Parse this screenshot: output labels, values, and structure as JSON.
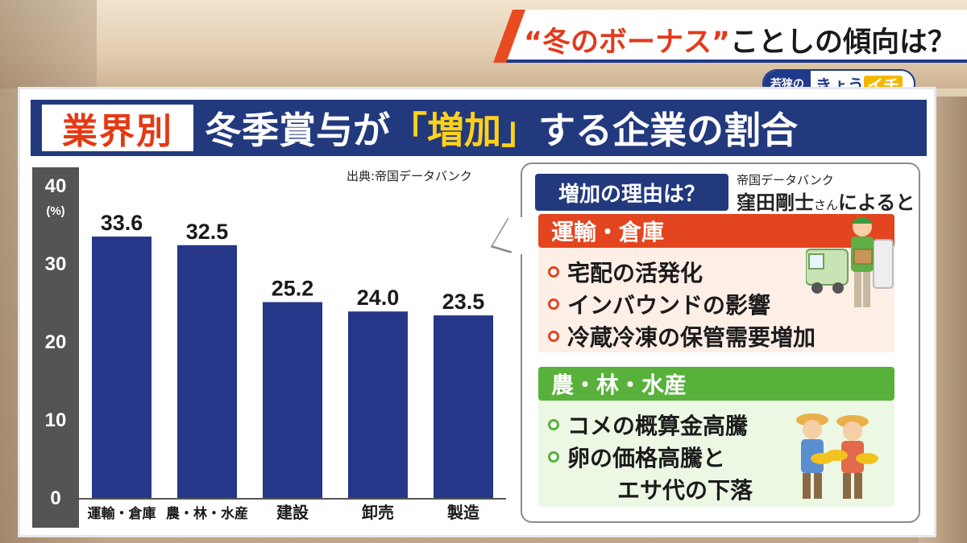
{
  "header": {
    "topic_quote_open": "“",
    "topic_quote_word": "冬のボーナス",
    "topic_quote_close": "”",
    "topic_rest": "ことしの傾向は？",
    "show_logo_prefix": "若狭の",
    "show_logo_name": "きょう",
    "show_logo_accent": "イチ"
  },
  "title": {
    "tag": "業界別",
    "main_pre": "冬季賞与が",
    "main_highlight": "「増加」",
    "main_post": "する企業の割合"
  },
  "source": "出典:帝国データバンク",
  "chart_data": {
    "type": "bar",
    "categories": [
      "運輸・倉庫",
      "農・林・水産",
      "建設",
      "卸売",
      "製造"
    ],
    "values": [
      33.6,
      32.5,
      25.2,
      24.0,
      23.5
    ],
    "value_labels": [
      "33.6",
      "32.5",
      "25.2",
      "24.0",
      "23.5"
    ],
    "ylim": [
      0,
      40
    ],
    "yticks": [
      "0",
      "10",
      "20",
      "30",
      "40"
    ],
    "ylabel": "(%)",
    "bar_color": "#26378a",
    "grid": false
  },
  "panel": {
    "question": "増加の理由は？",
    "attribution_org": "帝国データバンク",
    "attribution_name": "窪田剛士",
    "attribution_honorific": "さん",
    "attribution_tail": "によると",
    "sections": [
      {
        "heading": "運輸・倉庫",
        "color": "#e2451f",
        "body_color": "#fdeee6",
        "bullets": [
          "宅配の活発化",
          "インバウンドの影響",
          "冷蔵冷凍の保管需要増加"
        ]
      },
      {
        "heading": "農・林・水産",
        "color": "#57b13a",
        "body_color": "#ecf7e4",
        "bullets": [
          "コメの概算金高騰",
          "卵の価格高騰と",
          "エサ代の下落"
        ]
      }
    ]
  }
}
